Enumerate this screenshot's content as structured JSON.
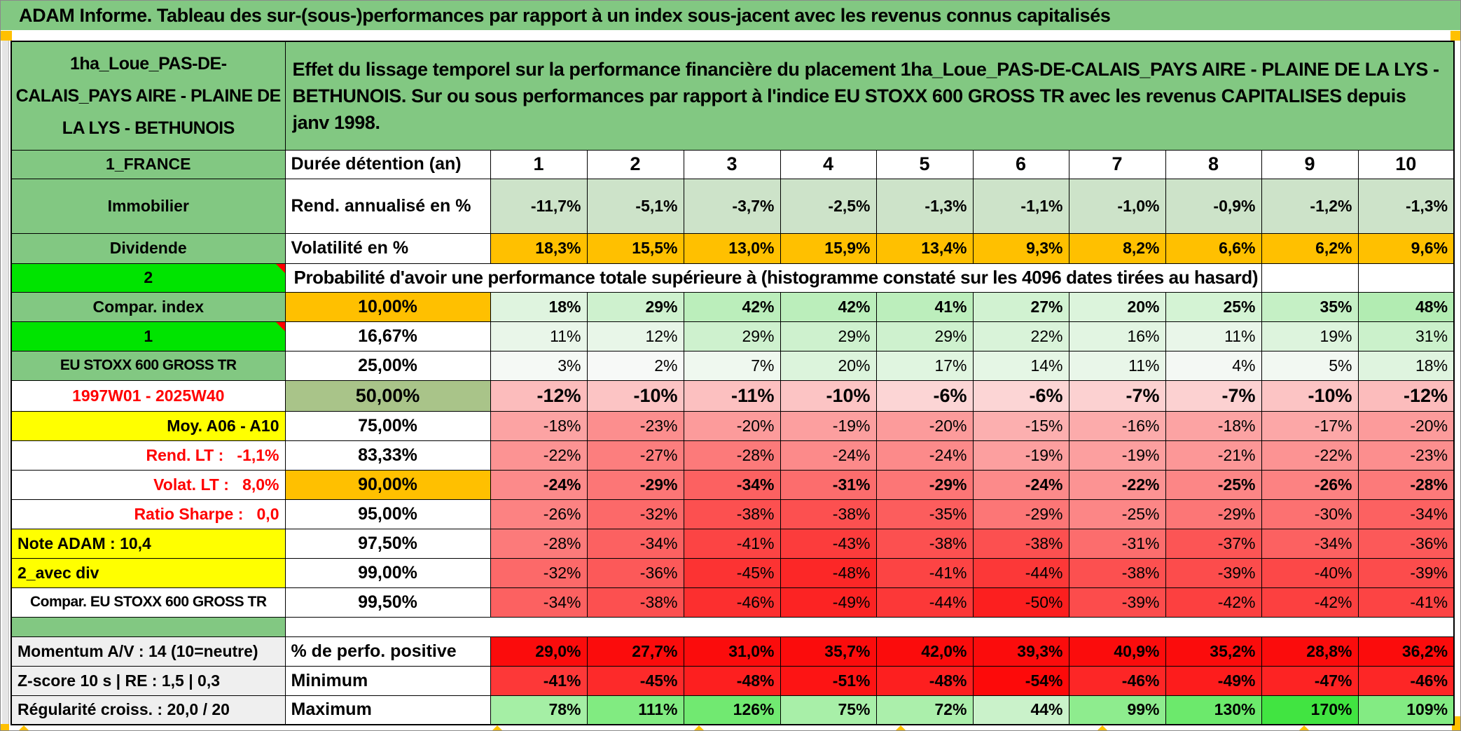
{
  "title": "ADAM Informe. Tableau des sur-(sous-)performances par rapport à un index sous-jacent avec les revenus connus capitalisés",
  "header": {
    "left_label": "1ha_Loue_PAS-DE-CALAIS_PAYS AIRE - PLAINE DE LA LYS - BETHUNOIS",
    "description": "Effet du lissage temporel sur la performance financière du placement 1ha_Loue_PAS-DE-CALAIS_PAYS AIRE - PLAINE DE LA LYS - BETHUNOIS. Sur ou sous performances par rapport à l'indice EU STOXX 600 GROSS TR avec les revenus CAPITALISES depuis janv 1998."
  },
  "colors": {
    "header_green": "#82C882",
    "bright_green": "#00E400",
    "orange": "#FFC000",
    "yellow": "#FFFF00",
    "olive_green": "#A9C489",
    "sage_green": "#CDE3C9",
    "label_gray": "#EFEFEF",
    "red_text": "#FF0000",
    "full_red": "#FB0C0C",
    "marker_orange": "#FFC000"
  },
  "rows": [
    {
      "label": "1_FRANCE",
      "label_bg": "green",
      "head": "Durée détention (an)",
      "head_align": "left",
      "values": [
        "1",
        "2",
        "3",
        "4",
        "5",
        "6",
        "7",
        "8",
        "9",
        "10"
      ],
      "v_align": "center",
      "v_bold": true,
      "v_big": true,
      "v_bg": "white"
    },
    {
      "label": "Immobilier",
      "label_bg": "green",
      "head": "Rend. annualisé en %",
      "head_align": "left",
      "values": [
        "-11,7%",
        "-5,1%",
        "-3,7%",
        "-2,5%",
        "-1,3%",
        "-1,1%",
        "-1,0%",
        "-0,9%",
        "-1,2%",
        "-1,3%"
      ],
      "v_bold": true,
      "v_bg": "sage"
    },
    {
      "label": "Dividende",
      "label_bg": "green",
      "head": "Volatilité en %",
      "head_align": "left",
      "values": [
        "18,3%",
        "15,5%",
        "13,0%",
        "15,9%",
        "13,4%",
        "9,3%",
        "8,2%",
        "6,6%",
        "6,2%",
        "9,6%"
      ],
      "v_bold": true,
      "v_bg": "orange"
    },
    {
      "label": "2",
      "label_bg": "lime",
      "note": true,
      "span_text": "Probabilité d'avoir une performance totale supérieure à (histogramme constaté sur les 4096 dates tirées au hasard)",
      "span": 9,
      "tail_empty": 2
    },
    {
      "label": "Compar. index",
      "label_bg": "green",
      "head": "10,00%",
      "head_bg": "orange",
      "values": [
        "18%",
        "29%",
        "42%",
        "42%",
        "41%",
        "27%",
        "20%",
        "25%",
        "35%",
        "48%"
      ],
      "v_bold": true,
      "v_bg": "heat:gsoft"
    },
    {
      "label": "1",
      "label_bg": "lime",
      "note": true,
      "head": "16,67%",
      "values": [
        "11%",
        "12%",
        "29%",
        "29%",
        "29%",
        "22%",
        "16%",
        "11%",
        "19%",
        "31%"
      ],
      "v_bg": "heat:gsoft"
    },
    {
      "label": "EU STOXX 600 GROSS TR",
      "label_bg": "green",
      "label_small": true,
      "head": "25,00%",
      "values": [
        "3%",
        "2%",
        "7%",
        "20%",
        "17%",
        "14%",
        "11%",
        "4%",
        "5%",
        "18%"
      ],
      "v_bg": "heat:gsoft"
    },
    {
      "label": "1997W01 - 2025W40",
      "label_color": "red",
      "head": "50,00%",
      "head_bg": "olive",
      "head_big": true,
      "values": [
        "-12%",
        "-10%",
        "-11%",
        "-10%",
        "-6%",
        "-6%",
        "-7%",
        "-7%",
        "-10%",
        "-12%"
      ],
      "v_bold": true,
      "v_big": true,
      "v_bg": "heat:red"
    },
    {
      "label": "Moy. A06 - A10",
      "label_bg": "yellow",
      "label_align": "right",
      "head": "75,00%",
      "values": [
        "-18%",
        "-23%",
        "-20%",
        "-19%",
        "-20%",
        "-15%",
        "-16%",
        "-18%",
        "-17%",
        "-20%"
      ],
      "v_bg": "heat:red"
    },
    {
      "label": "Rend. LT :   -1,1%",
      "label_color": "red",
      "label_align": "right",
      "head": "83,33%",
      "values": [
        "-22%",
        "-27%",
        "-28%",
        "-24%",
        "-24%",
        "-19%",
        "-19%",
        "-21%",
        "-22%",
        "-23%"
      ],
      "v_bg": "heat:red"
    },
    {
      "label": "Volat. LT :   8,0%",
      "label_color": "red",
      "label_align": "right",
      "head": "90,00%",
      "head_bg": "orange",
      "values": [
        "-24%",
        "-29%",
        "-34%",
        "-31%",
        "-29%",
        "-24%",
        "-22%",
        "-25%",
        "-26%",
        "-28%"
      ],
      "v_bold": true,
      "v_bg": "heat:red"
    },
    {
      "label": "Ratio Sharpe :   0,0",
      "label_color": "red",
      "label_align": "right",
      "head": "95,00%",
      "values": [
        "-26%",
        "-32%",
        "-38%",
        "-38%",
        "-35%",
        "-29%",
        "-25%",
        "-29%",
        "-30%",
        "-34%"
      ],
      "v_bg": "heat:red"
    },
    {
      "label": "Note ADAM : 10,4",
      "label_bg": "yellow",
      "label_align": "left",
      "head": "97,50%",
      "values": [
        "-28%",
        "-34%",
        "-41%",
        "-43%",
        "-38%",
        "-38%",
        "-31%",
        "-37%",
        "-34%",
        "-36%"
      ],
      "v_bg": "heat:red"
    },
    {
      "label": "2_avec div",
      "label_bg": "yellow",
      "label_align": "left",
      "head": "99,00%",
      "values": [
        "-32%",
        "-36%",
        "-45%",
        "-48%",
        "-41%",
        "-44%",
        "-38%",
        "-39%",
        "-40%",
        "-39%"
      ],
      "v_bg": "heat:red"
    },
    {
      "label": "Compar. EU STOXX 600 GROSS TR",
      "label_small": true,
      "head": "99,50%",
      "values": [
        "-34%",
        "-38%",
        "-46%",
        "-49%",
        "-44%",
        "-50%",
        "-39%",
        "-42%",
        "-42%",
        "-41%"
      ],
      "v_bg": "heat:red"
    },
    {
      "gap": true,
      "label": "",
      "label_bg": "green"
    },
    {
      "label": "Momentum A/V : 14 (10=neutre)",
      "label_bg": "gray",
      "label_align": "left",
      "head": "% de perfo. positive",
      "head_align": "left",
      "values": [
        "29,0%",
        "27,7%",
        "31,0%",
        "35,7%",
        "42,0%",
        "39,3%",
        "40,9%",
        "35,2%",
        "28,8%",
        "36,2%"
      ],
      "v_bold": true,
      "v_bg": "fullred"
    },
    {
      "label": "Z-score 10 s | RE : 1,5 | 0,3",
      "label_bg": "gray",
      "label_align": "left",
      "head": "Minimum",
      "head_align": "left",
      "values": [
        "-41%",
        "-45%",
        "-48%",
        "-51%",
        "-48%",
        "-54%",
        "-46%",
        "-49%",
        "-47%",
        "-46%"
      ],
      "v_bold": true,
      "v_bg": "heat:minred"
    },
    {
      "label": "Régularité croiss. : 20,0 / 20",
      "label_bg": "gray",
      "label_align": "left",
      "head": "Maximum",
      "head_align": "left",
      "values": [
        "78%",
        "111%",
        "126%",
        "75%",
        "72%",
        "44%",
        "99%",
        "130%",
        "170%",
        "109%"
      ],
      "v_bold": true,
      "v_bg": "heat:gstrong"
    }
  ]
}
